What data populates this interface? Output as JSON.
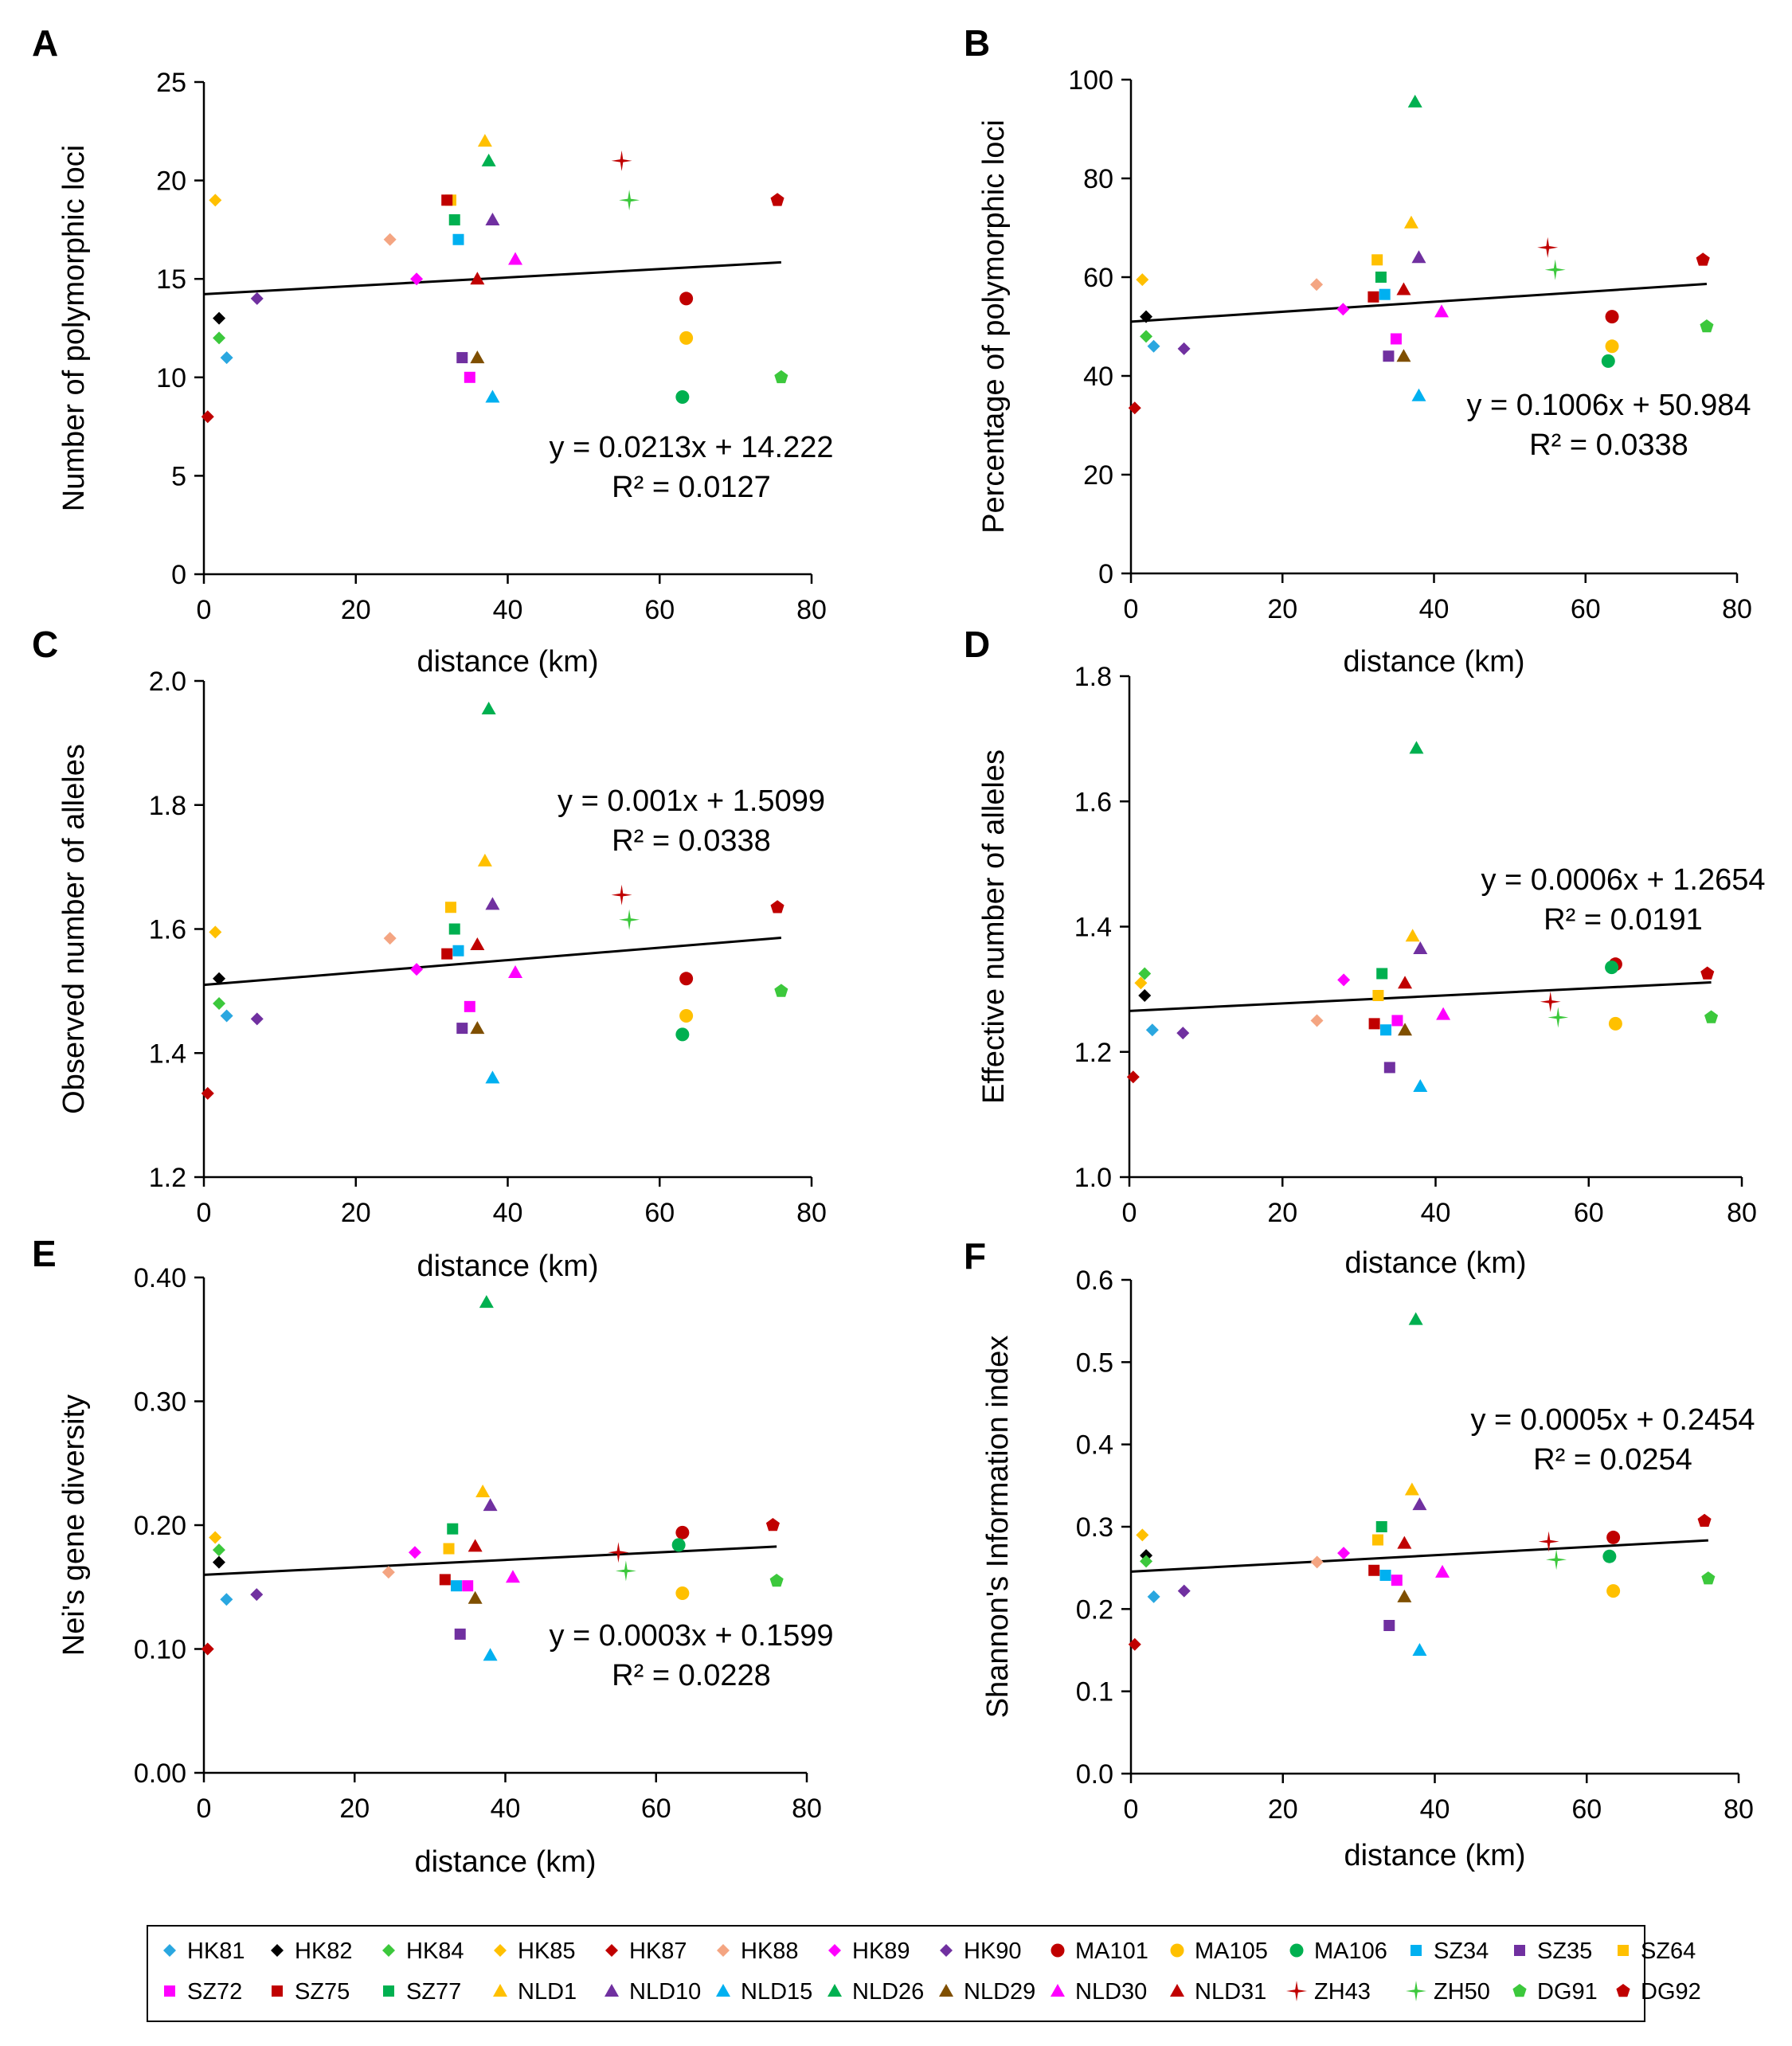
{
  "populations": [
    {
      "name": "HK81",
      "color": "#2aa7e0",
      "marker": "diamond"
    },
    {
      "name": "HK82",
      "color": "#000000",
      "marker": "diamond"
    },
    {
      "name": "HK84",
      "color": "#3cc83c",
      "marker": "diamond"
    },
    {
      "name": "HK85",
      "color": "#ffc000",
      "marker": "diamond"
    },
    {
      "name": "HK87",
      "color": "#c00000",
      "marker": "diamond"
    },
    {
      "name": "HK88",
      "color": "#f4a582",
      "marker": "diamond"
    },
    {
      "name": "HK89",
      "color": "#ff00ff",
      "marker": "diamond"
    },
    {
      "name": "HK90",
      "color": "#7030a0",
      "marker": "diamond"
    },
    {
      "name": "MA101",
      "color": "#c00000",
      "marker": "circle"
    },
    {
      "name": "MA105",
      "color": "#ffc000",
      "marker": "circle"
    },
    {
      "name": "MA106",
      "color": "#00b050",
      "marker": "circle"
    },
    {
      "name": "SZ34",
      "color": "#00b0f0",
      "marker": "square"
    },
    {
      "name": "SZ35",
      "color": "#7030a0",
      "marker": "square"
    },
    {
      "name": "SZ64",
      "color": "#ffc000",
      "marker": "square"
    },
    {
      "name": "SZ72",
      "color": "#ff00ff",
      "marker": "square"
    },
    {
      "name": "SZ75",
      "color": "#c00000",
      "marker": "square"
    },
    {
      "name": "SZ77",
      "color": "#00b050",
      "marker": "square"
    },
    {
      "name": "NLD1",
      "color": "#ffc000",
      "marker": "triangle"
    },
    {
      "name": "NLD10",
      "color": "#7030a0",
      "marker": "triangle"
    },
    {
      "name": "NLD15",
      "color": "#00b0f0",
      "marker": "triangle"
    },
    {
      "name": "NLD26",
      "color": "#00b050",
      "marker": "triangle"
    },
    {
      "name": "NLD29",
      "color": "#7f4f00",
      "marker": "triangle"
    },
    {
      "name": "NLD30",
      "color": "#ff00ff",
      "marker": "triangle"
    },
    {
      "name": "NLD31",
      "color": "#c00000",
      "marker": "triangle"
    },
    {
      "name": "ZH43",
      "color": "#c00000",
      "marker": "star"
    },
    {
      "name": "ZH50",
      "color": "#3cc83c",
      "marker": "star"
    },
    {
      "name": "DG91",
      "color": "#3cc83c",
      "marker": "pentagon"
    },
    {
      "name": "DG92",
      "color": "#c00000",
      "marker": "pentagon"
    }
  ],
  "distances_km": {
    "HK81": 3,
    "HK82": 2,
    "HK84": 2,
    "HK85": 1.5,
    "HK87": 0.5,
    "HK88": 24.5,
    "HK89": 28,
    "HK90": 7,
    "MA101": 63.5,
    "MA105": 63.5,
    "MA106": 63,
    "SZ34": 33.5,
    "SZ35": 34,
    "SZ64": 32.5,
    "SZ72": 35,
    "SZ75": 32,
    "SZ77": 33,
    "NLD1": 37,
    "NLD10": 38,
    "NLD15": 38,
    "NLD26": 37.5,
    "NLD29": 36,
    "NLD30": 41,
    "NLD31": 36,
    "ZH43": 55,
    "ZH50": 56,
    "DG91": 76,
    "DG92": 75.5
  },
  "chart_data": [
    {
      "type": "scatter",
      "panel": "A",
      "xlabel": "distance (km)",
      "ylabel": "Number of polymorphic loci",
      "xlim": [
        0,
        80
      ],
      "ylim": [
        0,
        25
      ],
      "xticks": [
        "0",
        "20",
        "40",
        "60",
        "80"
      ],
      "yticks": [
        "0",
        "5",
        "10",
        "15",
        "20",
        "25"
      ],
      "equation": "y = 0.0213x + 14.222",
      "r2": "R² = 0.0127",
      "trend": {
        "slope": 0.0213,
        "intercept": 14.222
      },
      "values": {
        "HK81": 11,
        "HK82": 13,
        "HK84": 12,
        "HK85": 19,
        "HK87": 8,
        "HK88": 17,
        "HK89": 15,
        "HK90": 14,
        "MA101": 14,
        "MA105": 12,
        "MA106": 9,
        "SZ34": 17,
        "SZ35": 11,
        "SZ64": 19,
        "SZ72": 10,
        "SZ75": 19,
        "SZ77": 18,
        "NLD1": 22,
        "NLD10": 18,
        "NLD15": 9,
        "NLD26": 21,
        "NLD29": 11,
        "NLD30": 16,
        "NLD31": 15,
        "ZH43": 21,
        "ZH50": 19,
        "DG91": 10,
        "DG92": 19
      }
    },
    {
      "type": "scatter",
      "panel": "B",
      "xlabel": "distance (km)",
      "ylabel": "Percentage of polymorphic loci",
      "xlim": [
        0,
        80
      ],
      "ylim": [
        0,
        100
      ],
      "xticks": [
        "0",
        "20",
        "40",
        "60",
        "80"
      ],
      "yticks": [
        "0",
        "20",
        "40",
        "60",
        "80",
        "100"
      ],
      "equation": "y = 0.1006x + 50.984",
      "r2": "R² = 0.0338",
      "trend": {
        "slope": 0.1006,
        "intercept": 50.984
      },
      "values": {
        "HK81": 46,
        "HK82": 52,
        "HK84": 48,
        "HK85": 59.5,
        "HK87": 33.5,
        "HK88": 58.5,
        "HK89": 53.5,
        "HK90": 45.5,
        "MA101": 52,
        "MA105": 46,
        "MA106": 43,
        "SZ34": 56.5,
        "SZ35": 44,
        "SZ64": 63.5,
        "SZ72": 47.5,
        "SZ75": 56,
        "SZ77": 60,
        "NLD1": 71,
        "NLD10": 64,
        "NLD15": 36,
        "NLD26": 95.5,
        "NLD29": 44,
        "NLD30": 53,
        "NLD31": 57.5,
        "ZH43": 66,
        "ZH50": 61.5,
        "DG91": 50,
        "DG92": 63.5
      }
    },
    {
      "type": "scatter",
      "panel": "C",
      "xlabel": "distance (km)",
      "ylabel": "Observed number of alleles",
      "xlim": [
        0,
        80
      ],
      "ylim": [
        1.2,
        2.0
      ],
      "xticks": [
        "0",
        "20",
        "40",
        "60",
        "80"
      ],
      "yticks": [
        "1.2",
        "1.4",
        "1.6",
        "1.8",
        "2.0"
      ],
      "equation": "y = 0.001x + 1.5099",
      "r2": "R² = 0.0338",
      "trend": {
        "slope": 0.001,
        "intercept": 1.5099
      },
      "values": {
        "HK81": 1.46,
        "HK82": 1.52,
        "HK84": 1.48,
        "HK85": 1.595,
        "HK87": 1.335,
        "HK88": 1.585,
        "HK89": 1.535,
        "HK90": 1.455,
        "MA101": 1.52,
        "MA105": 1.46,
        "MA106": 1.43,
        "SZ34": 1.565,
        "SZ35": 1.44,
        "SZ64": 1.635,
        "SZ72": 1.475,
        "SZ75": 1.56,
        "SZ77": 1.6,
        "NLD1": 1.71,
        "NLD10": 1.64,
        "NLD15": 1.36,
        "NLD26": 1.955,
        "NLD29": 1.44,
        "NLD30": 1.53,
        "NLD31": 1.575,
        "ZH43": 1.655,
        "ZH50": 1.615,
        "DG91": 1.5,
        "DG92": 1.635
      }
    },
    {
      "type": "scatter",
      "panel": "D",
      "xlabel": "distance (km)",
      "ylabel": "Effective number of alleles",
      "xlim": [
        0,
        80
      ],
      "ylim": [
        1.0,
        1.8
      ],
      "xticks": [
        "0",
        "20",
        "40",
        "60",
        "80"
      ],
      "yticks": [
        "1.0",
        "1.2",
        "1.4",
        "1.6",
        "1.8"
      ],
      "equation": "y = 0.0006x + 1.2654",
      "r2": "R² = 0.0191",
      "trend": {
        "slope": 0.0006,
        "intercept": 1.2654
      },
      "values": {
        "HK81": 1.235,
        "HK82": 1.29,
        "HK84": 1.325,
        "HK85": 1.31,
        "HK87": 1.16,
        "HK88": 1.25,
        "HK89": 1.315,
        "HK90": 1.23,
        "MA101": 1.34,
        "MA105": 1.245,
        "MA106": 1.335,
        "SZ34": 1.235,
        "SZ35": 1.175,
        "SZ64": 1.29,
        "SZ72": 1.25,
        "SZ75": 1.245,
        "SZ77": 1.325,
        "NLD1": 1.385,
        "NLD10": 1.365,
        "NLD15": 1.145,
        "NLD26": 1.685,
        "NLD29": 1.235,
        "NLD30": 1.26,
        "NLD31": 1.31,
        "ZH43": 1.28,
        "ZH50": 1.255,
        "DG91": 1.255,
        "DG92": 1.325
      }
    },
    {
      "type": "scatter",
      "panel": "E",
      "xlabel": "distance (km)",
      "ylabel": "Nei's gene diversity",
      "xlim": [
        0,
        80
      ],
      "ylim": [
        0.0,
        0.4
      ],
      "xticks": [
        "0",
        "20",
        "40",
        "60",
        "80"
      ],
      "yticks": [
        "0.00",
        "0.10",
        "0.20",
        "0.30",
        "0.40"
      ],
      "equation": "y = 0.0003x + 0.1599",
      "r2": "R² = 0.0228",
      "trend": {
        "slope": 0.0003,
        "intercept": 0.1599
      },
      "values": {
        "HK81": 0.14,
        "HK82": 0.17,
        "HK84": 0.18,
        "HK85": 0.19,
        "HK87": 0.1,
        "HK88": 0.162,
        "HK89": 0.178,
        "HK90": 0.144,
        "MA101": 0.194,
        "MA105": 0.145,
        "MA106": 0.184,
        "SZ34": 0.151,
        "SZ35": 0.112,
        "SZ64": 0.181,
        "SZ72": 0.151,
        "SZ75": 0.156,
        "SZ77": 0.197,
        "NLD1": 0.227,
        "NLD10": 0.216,
        "NLD15": 0.095,
        "NLD26": 0.38,
        "NLD29": 0.141,
        "NLD30": 0.158,
        "NLD31": 0.183,
        "ZH43": 0.178,
        "ZH50": 0.163,
        "DG91": 0.155,
        "DG92": 0.2
      }
    },
    {
      "type": "scatter",
      "panel": "F",
      "xlabel": "distance (km)",
      "ylabel": "Shannon's Information index",
      "xlim": [
        0,
        80
      ],
      "ylim": [
        0.0,
        0.6
      ],
      "xticks": [
        "0",
        "20",
        "40",
        "60",
        "80"
      ],
      "yticks": [
        "0.0",
        "0.1",
        "0.2",
        "0.3",
        "0.4",
        "0.5",
        "0.6"
      ],
      "equation": "y = 0.0005x + 0.2454",
      "r2": "R² = 0.0254",
      "trend": {
        "slope": 0.0005,
        "intercept": 0.2454
      },
      "values": {
        "HK81": 0.215,
        "HK82": 0.265,
        "HK84": 0.258,
        "HK85": 0.29,
        "HK87": 0.157,
        "HK88": 0.257,
        "HK89": 0.268,
        "HK90": 0.222,
        "MA101": 0.287,
        "MA105": 0.222,
        "MA106": 0.264,
        "SZ34": 0.241,
        "SZ35": 0.18,
        "SZ64": 0.284,
        "SZ72": 0.235,
        "SZ75": 0.247,
        "SZ77": 0.3,
        "NLD1": 0.345,
        "NLD10": 0.327,
        "NLD15": 0.15,
        "NLD26": 0.552,
        "NLD29": 0.215,
        "NLD30": 0.245,
        "NLD31": 0.28,
        "ZH43": 0.282,
        "ZH50": 0.26,
        "DG91": 0.237,
        "DG92": 0.307
      }
    }
  ]
}
